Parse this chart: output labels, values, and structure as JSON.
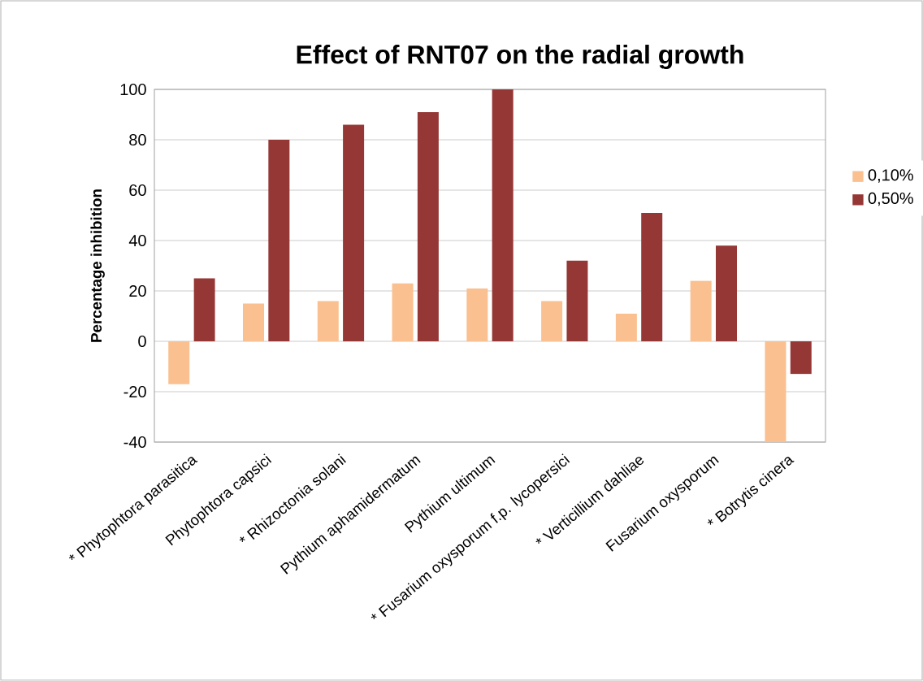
{
  "chart_data": {
    "type": "bar",
    "title": "Effect of RNT07 on the radial growth",
    "ylabel": "Percentage inhibition",
    "categories": [
      "* Phytophtora parasitica",
      "Phytophtora capsici",
      "* Rhizoctonia solani",
      "Pythium aphamidermatum",
      "Pythium ultimum",
      "* Fusarium oxysporum f.p. lycopersici",
      "* Verticillium dahliae",
      "Fusarium oxysporum",
      "* Botrytis cinera"
    ],
    "series": [
      {
        "name": "0,10%",
        "color": "#fac090",
        "values": [
          -17,
          15,
          16,
          23,
          21,
          16,
          11,
          24,
          -40
        ]
      },
      {
        "name": "0,50%",
        "color": "#953735",
        "values": [
          25,
          80,
          86,
          91,
          100,
          32,
          51,
          38,
          -13
        ]
      }
    ],
    "ylim": [
      -40,
      100
    ],
    "yticks": [
      -40,
      -20,
      0,
      20,
      40,
      60,
      80,
      100
    ],
    "grid": "y",
    "legend": "right"
  }
}
